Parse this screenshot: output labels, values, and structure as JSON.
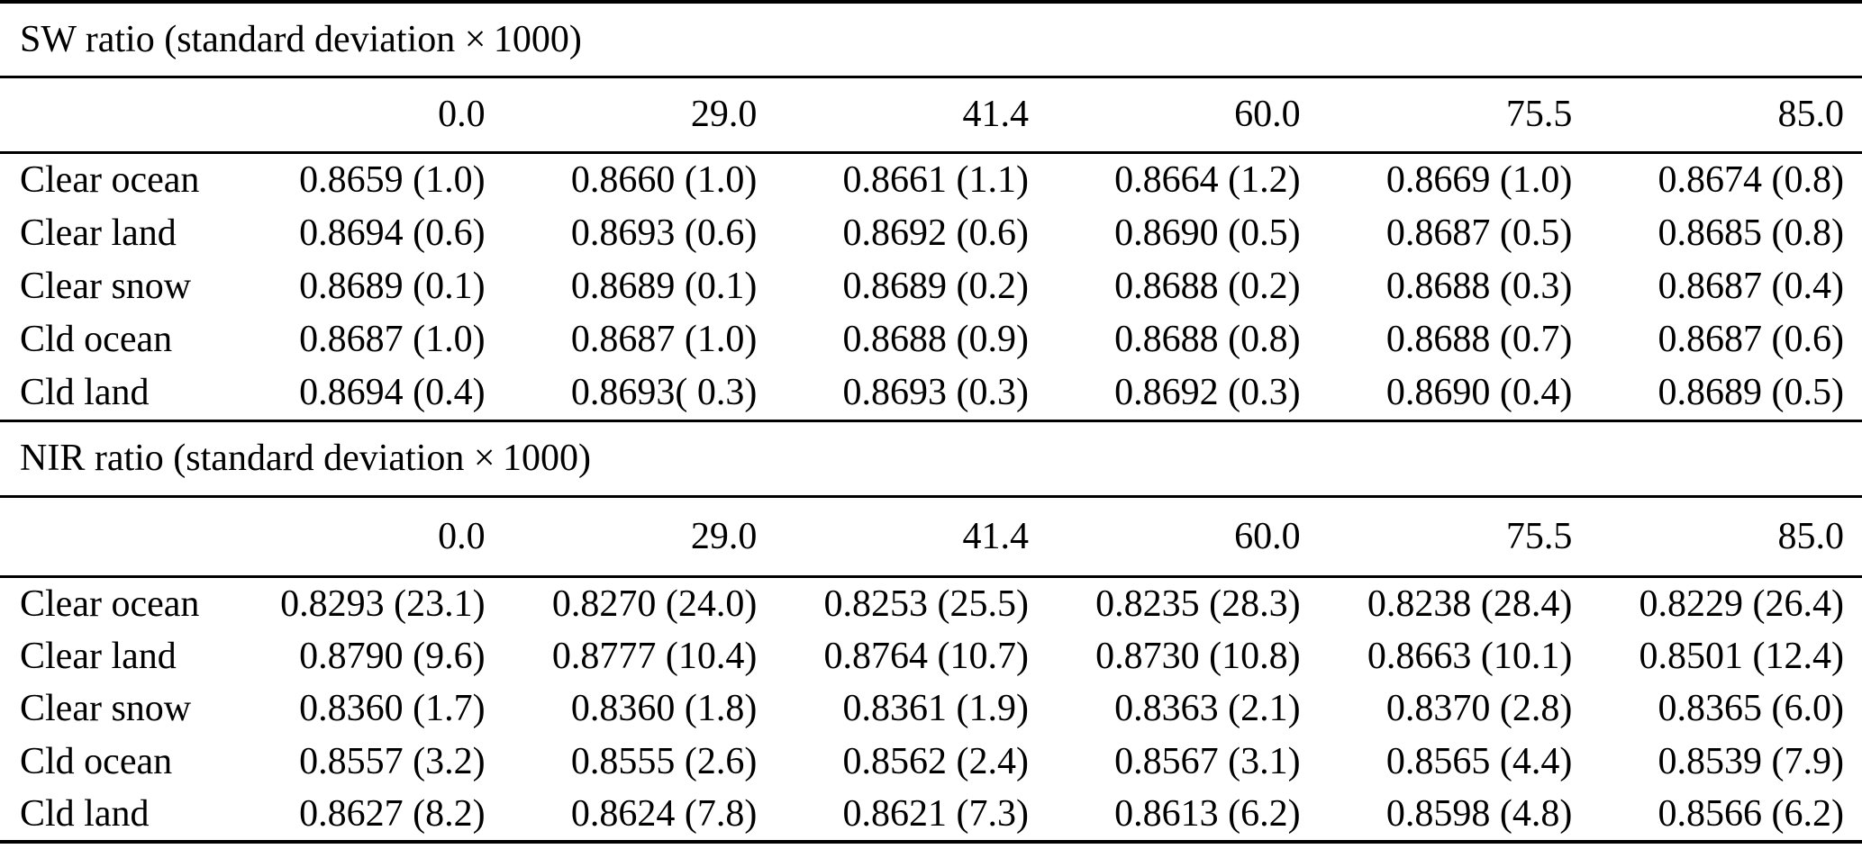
{
  "page": {
    "background_color": "#ffffff",
    "text_color": "#000000",
    "rule_color": "#000000"
  },
  "tables": [
    {
      "title": "SW ratio (standard deviation × 1000)",
      "columns": [
        "0.0",
        "29.0",
        "41.4",
        "60.0",
        "75.5",
        "85.0"
      ],
      "rows": [
        {
          "label": "Clear ocean",
          "values": [
            "0.8659 (1.0)",
            "0.8660 (1.0)",
            "0.8661 (1.1)",
            "0.8664 (1.2)",
            "0.8669 (1.0)",
            "0.8674 (0.8)"
          ]
        },
        {
          "label": "Clear land",
          "values": [
            "0.8694 (0.6)",
            "0.8693 (0.6)",
            "0.8692 (0.6)",
            "0.8690 (0.5)",
            "0.8687 (0.5)",
            "0.8685 (0.8)"
          ]
        },
        {
          "label": "Clear snow",
          "values": [
            "0.8689 (0.1)",
            "0.8689 (0.1)",
            "0.8689 (0.2)",
            "0.8688 (0.2)",
            "0.8688 (0.3)",
            "0.8687 (0.4)"
          ]
        },
        {
          "label": "Cld ocean",
          "values": [
            "0.8687 (1.0)",
            "0.8687 (1.0)",
            "0.8688 (0.9)",
            "0.8688 (0.8)",
            "0.8688 (0.7)",
            "0.8687 (0.6)"
          ]
        },
        {
          "label": "Cld land",
          "values": [
            "0.8694 (0.4)",
            "0.8693( 0.3)",
            "0.8693 (0.3)",
            "0.8692 (0.3)",
            "0.8690 (0.4)",
            "0.8689 (0.5)"
          ]
        }
      ]
    },
    {
      "title": "NIR ratio (standard deviation × 1000)",
      "columns": [
        "0.0",
        "29.0",
        "41.4",
        "60.0",
        "75.5",
        "85.0"
      ],
      "rows": [
        {
          "label": "Clear ocean",
          "values": [
            "0.8293 (23.1)",
            "0.8270 (24.0)",
            "0.8253 (25.5)",
            "0.8235 (28.3)",
            "0.8238 (28.4)",
            "0.8229 (26.4)"
          ]
        },
        {
          "label": "Clear land",
          "values": [
            "0.8790 (9.6)",
            "0.8777 (10.4)",
            "0.8764 (10.7)",
            "0.8730 (10.8)",
            "0.8663 (10.1)",
            "0.8501 (12.4)"
          ]
        },
        {
          "label": "Clear snow",
          "values": [
            "0.8360 (1.7)",
            "0.8360 (1.8)",
            "0.8361 (1.9)",
            "0.8363 (2.1)",
            "0.8370 (2.8)",
            "0.8365 (6.0)"
          ]
        },
        {
          "label": "Cld ocean",
          "values": [
            "0.8557 (3.2)",
            "0.8555 (2.6)",
            "0.8562 (2.4)",
            "0.8567 (3.1)",
            "0.8565 (4.4)",
            "0.8539 (7.9)"
          ]
        },
        {
          "label": "Cld land",
          "values": [
            "0.8627 (8.2)",
            "0.8624 (7.8)",
            "0.8621 (7.3)",
            "0.8613 (6.2)",
            "0.8598 (4.8)",
            "0.8566 (6.2)"
          ]
        }
      ]
    }
  ]
}
